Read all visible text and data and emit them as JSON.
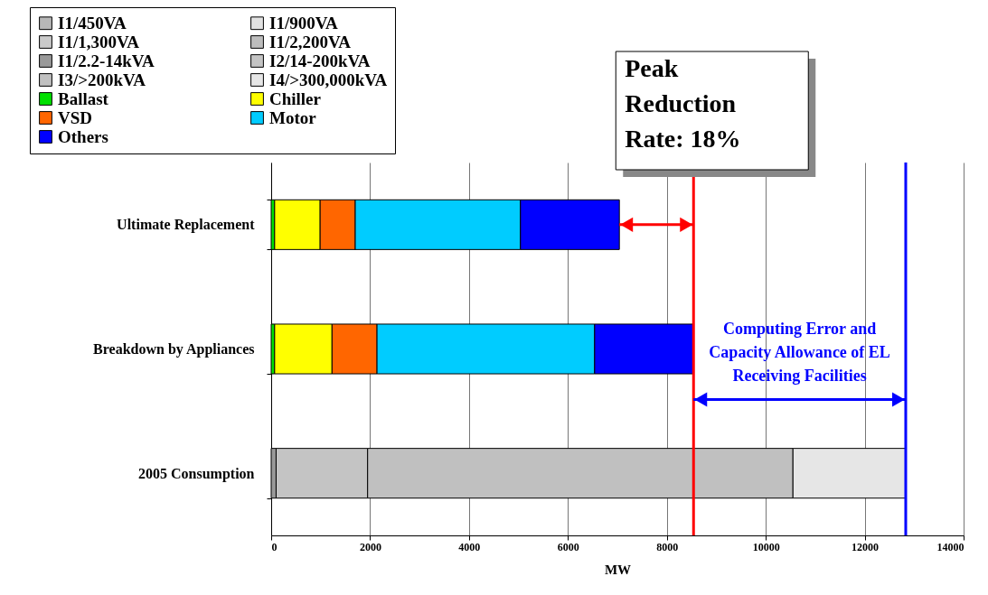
{
  "chart_data": {
    "type": "bar",
    "orientation": "horizontal",
    "stacked": true,
    "xlabel": "MW",
    "categories": [
      "Ultimate Replacement",
      "Breakdown by Appliances",
      "2005 Consumption"
    ],
    "series": [
      {
        "name": "I1/450VA",
        "color": "#b8b8b8",
        "values": [
          null,
          null,
          null
        ]
      },
      {
        "name": "I1/900VA",
        "color": "#e2e2e2",
        "values": [
          null,
          null,
          null
        ]
      },
      {
        "name": "I1/1,300VA",
        "color": "#cacaca",
        "values": [
          null,
          null,
          null
        ]
      },
      {
        "name": "I1/2,200VA",
        "color": "#bdbdbd",
        "values": [
          null,
          null,
          null
        ]
      },
      {
        "name": "I1/2.2-14kVA",
        "color": "#999999",
        "values": [
          null,
          null,
          100
        ]
      },
      {
        "name": "I2/14-200kVA",
        "color": "#c4c4c4",
        "values": [
          null,
          null,
          1850
        ]
      },
      {
        "name": "I3/>200kVA",
        "color": "#c0c0c0",
        "values": [
          null,
          null,
          8600
        ]
      },
      {
        "name": "I4/>300,000kVA",
        "color": "#e6e6e6",
        "values": [
          null,
          null,
          2280
        ]
      },
      {
        "name": "Ballast",
        "color": "#00e000",
        "values": [
          70,
          70,
          null
        ]
      },
      {
        "name": "Chiller",
        "color": "#ffff00",
        "values": [
          920,
          1160,
          null
        ]
      },
      {
        "name": "VSD",
        "color": "#ff6600",
        "values": [
          710,
          910,
          null
        ]
      },
      {
        "name": "Motor",
        "color": "#00ccff",
        "values": [
          3340,
          4400,
          null
        ]
      },
      {
        "name": "Others",
        "color": "#0000ff",
        "values": [
          2000,
          2000,
          null
        ]
      }
    ],
    "xlim": [
      0,
      14000
    ],
    "xticks": [
      0,
      2000,
      4000,
      6000,
      8000,
      10000,
      12000,
      14000
    ],
    "grid": "x",
    "legend": "top left",
    "ref_lines": [
      {
        "axis": "x",
        "value": 8540,
        "color": "#ff0000"
      },
      {
        "axis": "x",
        "value": 12830,
        "color": "#0000ff"
      }
    ],
    "annotations": [
      "Peak Reduction Rate: 18%",
      "Computing Error and Capacity Allowance of EL Receiving Facilities"
    ]
  }
}
